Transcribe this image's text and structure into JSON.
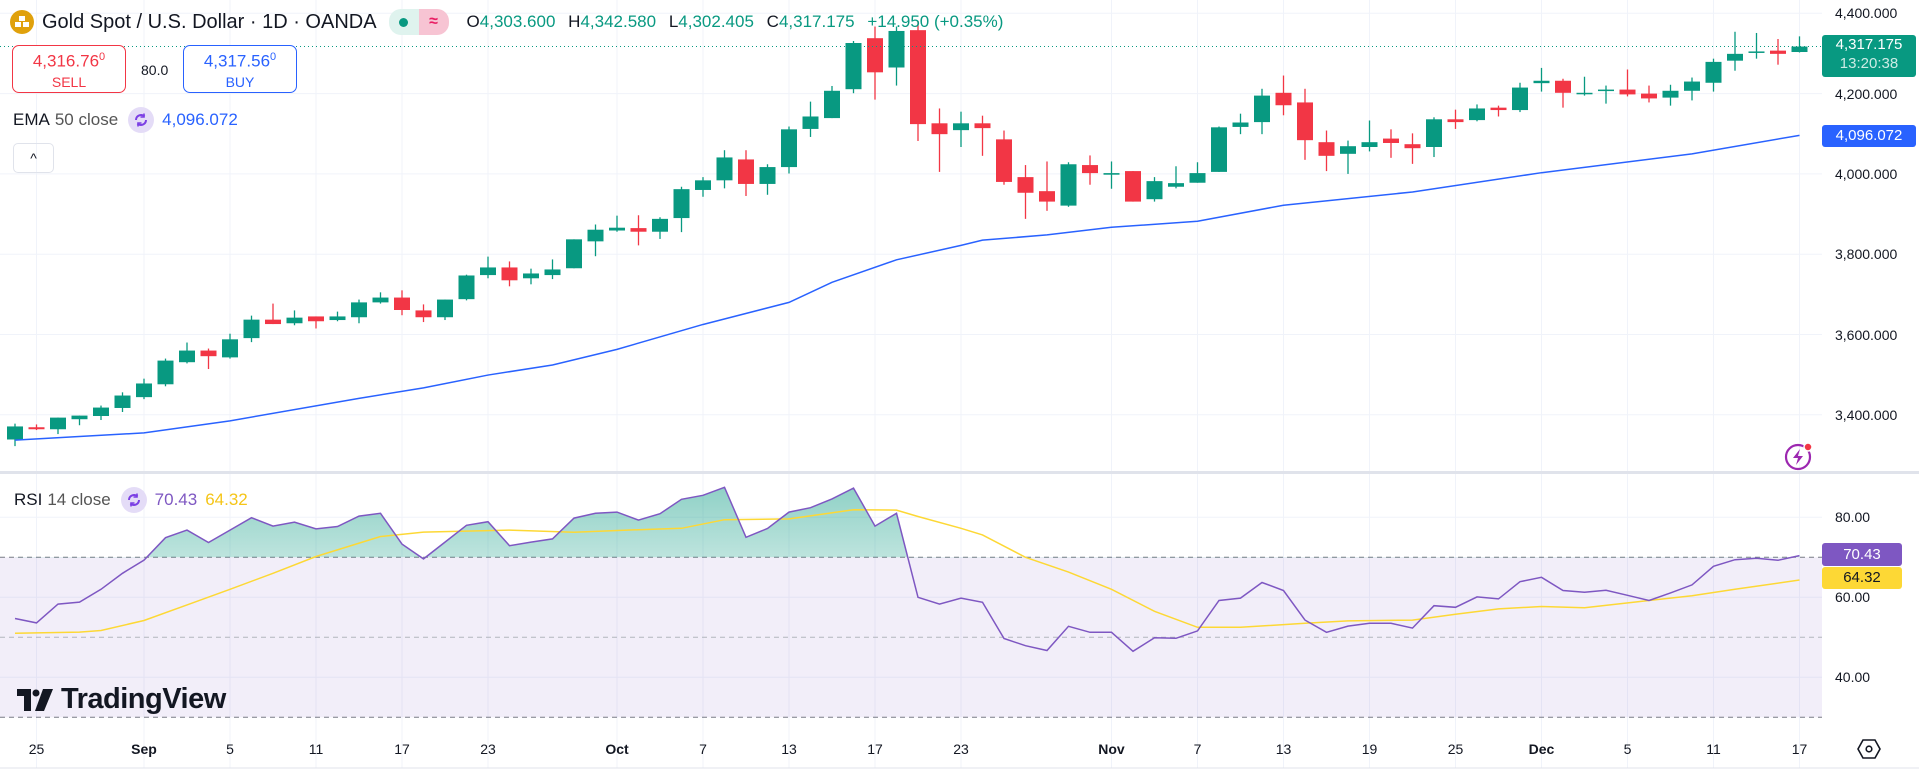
{
  "header": {
    "symbol_title": "Gold Spot / U.S. Dollar · 1D · OANDA",
    "symbol_icon": "gold-bars-icon",
    "ohlc": {
      "o_label": "O",
      "o": "4,303.600",
      "h_label": "H",
      "h": "4,342.580",
      "l_label": "L",
      "l": "4,302.405",
      "c_label": "C",
      "c": "4,317.175",
      "change": "+14.950 (+0.35%)"
    }
  },
  "trade": {
    "sell_price": "4,316.76",
    "sell_price_sup": "0",
    "sell_label": "SELL",
    "spread": "80.0",
    "buy_price": "4,317.56",
    "buy_price_sup": "0",
    "buy_label": "BUY"
  },
  "ema_legend": {
    "name": "EMA",
    "params": "50 close",
    "value": "4,096.072"
  },
  "rsi_legend": {
    "name": "RSI",
    "params": "14 close",
    "value": "70.43",
    "ma_value": "64.32"
  },
  "collapse_label": "^",
  "logo_text": "TradingView",
  "price_axis": {
    "labels": [
      "4,400.000",
      "4,200.000",
      "4,000.000",
      "3,800.000",
      "3,600.000",
      "3,400.000"
    ],
    "last_price": "4,317.175",
    "countdown": "13:20:38",
    "ema_tag": "4,096.072"
  },
  "rsi_axis": {
    "labels": [
      "80.00",
      "60.00",
      "40.00"
    ],
    "rsi_tag": "70.43",
    "ma_tag": "64.32"
  },
  "time_axis": [
    {
      "label": "25",
      "date": "Aug 25",
      "month": false
    },
    {
      "label": "Sep",
      "date": "Sep 1",
      "month": true
    },
    {
      "label": "5",
      "date": "Sep 5",
      "month": false
    },
    {
      "label": "11",
      "date": "Sep 11",
      "month": false
    },
    {
      "label": "17",
      "date": "Sep 17",
      "month": false
    },
    {
      "label": "23",
      "date": "Sep 23",
      "month": false
    },
    {
      "label": "Oct",
      "date": "Oct 1",
      "month": true
    },
    {
      "label": "7",
      "date": "Oct 7",
      "month": false
    },
    {
      "label": "13",
      "date": "Oct 13",
      "month": false
    },
    {
      "label": "17",
      "date": "Oct 17",
      "month": false
    },
    {
      "label": "23",
      "date": "Oct 23",
      "month": false
    },
    {
      "label": "Nov",
      "date": "Nov 3",
      "month": true
    },
    {
      "label": "7",
      "date": "Nov 7",
      "month": false
    },
    {
      "label": "13",
      "date": "Nov 13",
      "month": false
    },
    {
      "label": "19",
      "date": "Nov 19",
      "month": false
    },
    {
      "label": "25",
      "date": "Nov 25",
      "month": false
    },
    {
      "label": "Dec",
      "date": "Dec 1",
      "month": true
    },
    {
      "label": "5",
      "date": "Dec 5",
      "month": false
    },
    {
      "label": "11",
      "date": "Dec 11",
      "month": false
    },
    {
      "label": "17",
      "date": "Dec 17",
      "month": false
    }
  ],
  "colors": {
    "up": "#089981",
    "down": "#f23645",
    "ema": "#2962ff",
    "rsi": "#7e57c2",
    "rsi_ma": "#fdd835",
    "rsi_band": "#7e57c2",
    "overbought_fill": "#089981"
  },
  "icons": {
    "indicator_toggle": "refresh-cycle-icon",
    "alert": "lightning-icon",
    "settings": "hexagon-eye-icon"
  },
  "chart_data": {
    "type": "candlestick",
    "interval": "1D",
    "ylim": [
      3320,
      4400
    ],
    "columns": [
      "date",
      "open",
      "high",
      "low",
      "close"
    ],
    "candles": [
      [
        "Aug 22",
        3338.5,
        3378,
        3322,
        3371
      ],
      [
        "Aug 25",
        3369,
        3376,
        3362,
        3364
      ],
      [
        "Aug 26",
        3364,
        3393,
        3352,
        3393
      ],
      [
        "Aug 27",
        3389,
        3398,
        3374,
        3398
      ],
      [
        "Aug 28",
        3397,
        3423,
        3387,
        3418
      ],
      [
        "Aug 29",
        3417,
        3456,
        3407,
        3448
      ],
      [
        "Sep 1",
        3444,
        3490,
        3439,
        3478
      ],
      [
        "Sep 2",
        3476,
        3540,
        3471,
        3535
      ],
      [
        "Sep 3",
        3531,
        3580,
        3528,
        3560
      ],
      [
        "Sep 4",
        3560,
        3565,
        3514,
        3546
      ],
      [
        "Sep 5",
        3543,
        3602,
        3540,
        3588
      ],
      [
        "Sep 8",
        3591,
        3647,
        3581,
        3637
      ],
      [
        "Sep 9",
        3637,
        3677,
        3626,
        3626
      ],
      [
        "Sep 10",
        3628,
        3660,
        3623,
        3642
      ],
      [
        "Sep 11",
        3645,
        3645,
        3615,
        3633
      ],
      [
        "Sep 12",
        3636,
        3657,
        3633,
        3645
      ],
      [
        "Sep 15",
        3643,
        3687,
        3628,
        3680
      ],
      [
        "Sep 16",
        3680,
        3705,
        3677,
        3692
      ],
      [
        "Sep 17",
        3692,
        3710,
        3648,
        3661
      ],
      [
        "Sep 18",
        3660,
        3675,
        3631,
        3643
      ],
      [
        "Sep 19",
        3643,
        3687,
        3636,
        3687
      ],
      [
        "Sep 22",
        3688,
        3749,
        3685,
        3747
      ],
      [
        "Sep 23",
        3748,
        3794,
        3740,
        3767
      ],
      [
        "Sep 24",
        3767,
        3782,
        3720,
        3735
      ],
      [
        "Sep 25",
        3740,
        3764,
        3725,
        3752
      ],
      [
        "Sep 26",
        3748,
        3787,
        3738,
        3762
      ],
      [
        "Sep 29",
        3765,
        3837,
        3765,
        3837
      ],
      [
        "Sep 30",
        3832,
        3874,
        3795,
        3861
      ],
      [
        "Oct 1",
        3859,
        3896,
        3856,
        3866
      ],
      [
        "Oct 2",
        3865,
        3897,
        3822,
        3856
      ],
      [
        "Oct 3",
        3856,
        3892,
        3838,
        3888
      ],
      [
        "Oct 6",
        3890,
        3968,
        3855,
        3962
      ],
      [
        "Oct 7",
        3960,
        3992,
        3943,
        3984
      ],
      [
        "Oct 8",
        3984,
        4059,
        3964,
        4041
      ],
      [
        "Oct 9",
        4036,
        4059,
        3945,
        3975
      ],
      [
        "Oct 10",
        3975,
        4024,
        3948,
        4017
      ],
      [
        "Oct 13",
        4017,
        4118,
        4001,
        4111
      ],
      [
        "Oct 14",
        4112,
        4180,
        4092,
        4143
      ],
      [
        "Oct 15",
        4139,
        4219,
        4139,
        4207
      ],
      [
        "Oct 16",
        4211,
        4331,
        4201,
        4326
      ],
      [
        "Oct 17",
        4338,
        4367,
        4185,
        4253
      ],
      [
        "Oct 20",
        4265,
        4367,
        4220,
        4356
      ],
      [
        "Oct 21",
        4358,
        4381,
        4082,
        4124
      ],
      [
        "Oct 22",
        4126,
        4163,
        4005,
        4099
      ],
      [
        "Oct 23",
        4109,
        4155,
        4067,
        4126
      ],
      [
        "Oct 24",
        4126,
        4145,
        4045,
        4114
      ],
      [
        "Oct 27",
        4086,
        4108,
        3973,
        3980
      ],
      [
        "Oct 28",
        3992,
        4022,
        3888,
        3953
      ],
      [
        "Oct 29",
        3957,
        4031,
        3908,
        3931
      ],
      [
        "Oct 30",
        3921,
        4029,
        3918,
        4024
      ],
      [
        "Oct 31",
        4022,
        4046,
        3973,
        4002
      ],
      [
        "Nov 3",
        3998,
        4031,
        3963,
        4002
      ],
      [
        "Nov 4",
        4007,
        4007,
        3931,
        3931
      ],
      [
        "Nov 5",
        3937,
        3992,
        3931,
        3982
      ],
      [
        "Nov 6",
        3968,
        4019,
        3964,
        3977
      ],
      [
        "Nov 7",
        3978,
        4029,
        3978,
        4002
      ],
      [
        "Nov 10",
        4005,
        4118,
        4005,
        4116
      ],
      [
        "Nov 11",
        4117,
        4150,
        4099,
        4128
      ],
      [
        "Nov 12",
        4129,
        4212,
        4099,
        4195
      ],
      [
        "Nov 13",
        4202,
        4245,
        4146,
        4171
      ],
      [
        "Nov 14",
        4178,
        4212,
        4035,
        4084
      ],
      [
        "Nov 17",
        4079,
        4108,
        4007,
        4045
      ],
      [
        "Nov 18",
        4050,
        4083,
        4000,
        4069
      ],
      [
        "Nov 19",
        4067,
        4133,
        4056,
        4079
      ],
      [
        "Nov 20",
        4088,
        4111,
        4040,
        4077
      ],
      [
        "Nov 21",
        4074,
        4101,
        4025,
        4064
      ],
      [
        "Nov 24",
        4067,
        4141,
        4042,
        4136
      ],
      [
        "Nov 25",
        4136,
        4160,
        4112,
        4129
      ],
      [
        "Nov 26",
        4134,
        4173,
        4131,
        4163
      ],
      [
        "Nov 27",
        4165,
        4170,
        4143,
        4159
      ],
      [
        "Nov 28",
        4159,
        4227,
        4154,
        4215
      ],
      [
        "Dec 1",
        4226,
        4264,
        4205,
        4232
      ],
      [
        "Dec 2",
        4232,
        4237,
        4165,
        4202
      ],
      [
        "Dec 3",
        4200,
        4242,
        4195,
        4202
      ],
      [
        "Dec 4",
        4207,
        4220,
        4175,
        4210
      ],
      [
        "Dec 5",
        4210,
        4260,
        4193,
        4198
      ],
      [
        "Dec 8",
        4200,
        4220,
        4178,
        4188
      ],
      [
        "Dec 9",
        4190,
        4222,
        4170,
        4207
      ],
      [
        "Dec 10",
        4207,
        4240,
        4183,
        4230
      ],
      [
        "Dec 11",
        4227,
        4287,
        4205,
        4279
      ],
      [
        "Dec 12",
        4282,
        4354,
        4257,
        4299
      ],
      [
        "Dec 15",
        4302,
        4351,
        4287,
        4305
      ],
      [
        "Dec 16",
        4307,
        4336,
        4272,
        4299
      ],
      [
        "Dec 17",
        4303.6,
        4342.58,
        4302.405,
        4317.175
      ]
    ],
    "ema50": [
      [
        "Aug 22",
        3337
      ],
      [
        "Sep 1",
        3355
      ],
      [
        "Sep 5",
        3385
      ],
      [
        "Sep 15",
        3441
      ],
      [
        "Sep 18",
        3467
      ],
      [
        "Sep 23",
        3499
      ],
      [
        "Sep 26",
        3524
      ],
      [
        "Oct 1",
        3563
      ],
      [
        "Oct 7",
        3625
      ],
      [
        "Oct 13",
        3680
      ],
      [
        "Oct 15",
        3730
      ],
      [
        "Oct 20",
        3786
      ],
      [
        "Oct 23",
        3822
      ],
      [
        "Oct 24",
        3835
      ],
      [
        "Oct 29",
        3848
      ],
      [
        "Nov 3",
        3867
      ],
      [
        "Nov 7",
        3882
      ],
      [
        "Nov 13",
        3922
      ],
      [
        "Nov 21",
        3955
      ],
      [
        "Dec 1",
        4003
      ],
      [
        "Dec 10",
        4050
      ],
      [
        "Dec 17",
        4096.072
      ]
    ],
    "rsi": {
      "ylim": [
        30,
        90
      ],
      "levels": [
        70,
        50,
        30
      ],
      "gridlines": [
        80,
        60,
        40
      ],
      "values": [
        54.7,
        53.6,
        58.3,
        58.8,
        62,
        66,
        69.3,
        74.9,
        76.8,
        73.7,
        76.8,
        79.9,
        77.8,
        78.8,
        77.1,
        77.7,
        80.3,
        81,
        73.3,
        69.6,
        73.8,
        78,
        78.9,
        72.9,
        73.8,
        74.6,
        79.8,
        81,
        81.3,
        79.3,
        80.9,
        84.5,
        85.5,
        87.5,
        75,
        77.2,
        81.3,
        82.4,
        84.6,
        87.3,
        77.8,
        81,
        60,
        58.3,
        59.8,
        58.75,
        49.7,
        47.9,
        46.7,
        52.75,
        51.25,
        51.25,
        46.5,
        49.9,
        49.75,
        51.6,
        59.2,
        59.8,
        63.7,
        61.7,
        54.3,
        51.25,
        52.8,
        53.5,
        53.5,
        52.3,
        57.9,
        57.5,
        60.1,
        59.6,
        63.9,
        65,
        61.7,
        61.25,
        61.75,
        60.5,
        59.2,
        61.1,
        63.1,
        67.75,
        69.4,
        69.75,
        69.25,
        70.43
      ],
      "ma": [
        [
          "Aug 22",
          51
        ],
        [
          "Aug 27",
          51.3
        ],
        [
          "Aug 28",
          51.7
        ],
        [
          "Sep 1",
          54.2
        ],
        [
          "Sep 3",
          58.1
        ],
        [
          "Sep 5",
          62
        ],
        [
          "Sep 9",
          66
        ],
        [
          "Sep 11",
          70.2
        ],
        [
          "Sep 16",
          75.2
        ],
        [
          "Sep 18",
          76.3
        ],
        [
          "Sep 24",
          76.8
        ],
        [
          "Sep 29",
          76.25
        ],
        [
          "Oct 2",
          76.9
        ],
        [
          "Oct 6",
          77.25
        ],
        [
          "Oct 8",
          79.4
        ],
        [
          "Oct 13",
          79.6
        ],
        [
          "Oct 16",
          81.9
        ],
        [
          "Oct 20",
          81.8
        ],
        [
          "Oct 21",
          80.2
        ],
        [
          "Oct 23",
          77.25
        ],
        [
          "Oct 24",
          75.6
        ],
        [
          "Oct 28",
          70
        ],
        [
          "Oct 30",
          66.3
        ],
        [
          "Nov 3",
          62
        ],
        [
          "Nov 5",
          56.5
        ],
        [
          "Nov 7",
          52.5
        ],
        [
          "Nov 11",
          52.5
        ],
        [
          "Nov 14",
          53.5
        ],
        [
          "Nov 18",
          54.1
        ],
        [
          "Nov 21",
          54.3
        ],
        [
          "Nov 25",
          55.75
        ],
        [
          "Nov 27",
          57.1
        ],
        [
          "Dec 1",
          57.7
        ],
        [
          "Dec 3",
          57.4
        ],
        [
          "Dec 8",
          59.2
        ],
        [
          "Dec 10",
          60.4
        ],
        [
          "Dec 12",
          62
        ],
        [
          "Dec 17",
          64.32
        ]
      ]
    }
  }
}
